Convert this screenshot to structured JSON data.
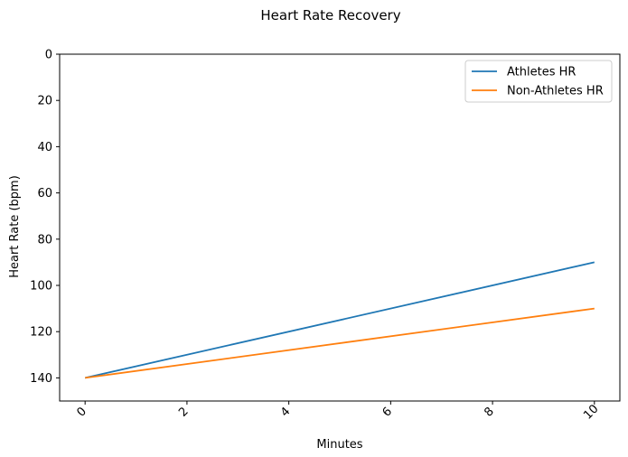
{
  "chart_data": {
    "type": "line",
    "title": "Heart Rate Recovery",
    "xlabel": "Minutes",
    "ylabel": "Heart Rate (bpm)",
    "x": [
      0,
      10
    ],
    "series": [
      {
        "name": "Athletes HR",
        "values": [
          140,
          90
        ],
        "color": "#1f77b4"
      },
      {
        "name": "Non-Athletes HR",
        "values": [
          140,
          110
        ],
        "color": "#ff7f0e"
      }
    ],
    "xlim": [
      -0.5,
      10.5
    ],
    "ylim": [
      150,
      0
    ],
    "y_inverted": true,
    "x_ticks": [
      0,
      2,
      4,
      6,
      8,
      10
    ],
    "y_ticks": [
      0,
      20,
      40,
      60,
      80,
      100,
      120,
      140
    ],
    "x_tick_rotation_deg": 45,
    "grid": false,
    "legend_position": "top-right"
  }
}
